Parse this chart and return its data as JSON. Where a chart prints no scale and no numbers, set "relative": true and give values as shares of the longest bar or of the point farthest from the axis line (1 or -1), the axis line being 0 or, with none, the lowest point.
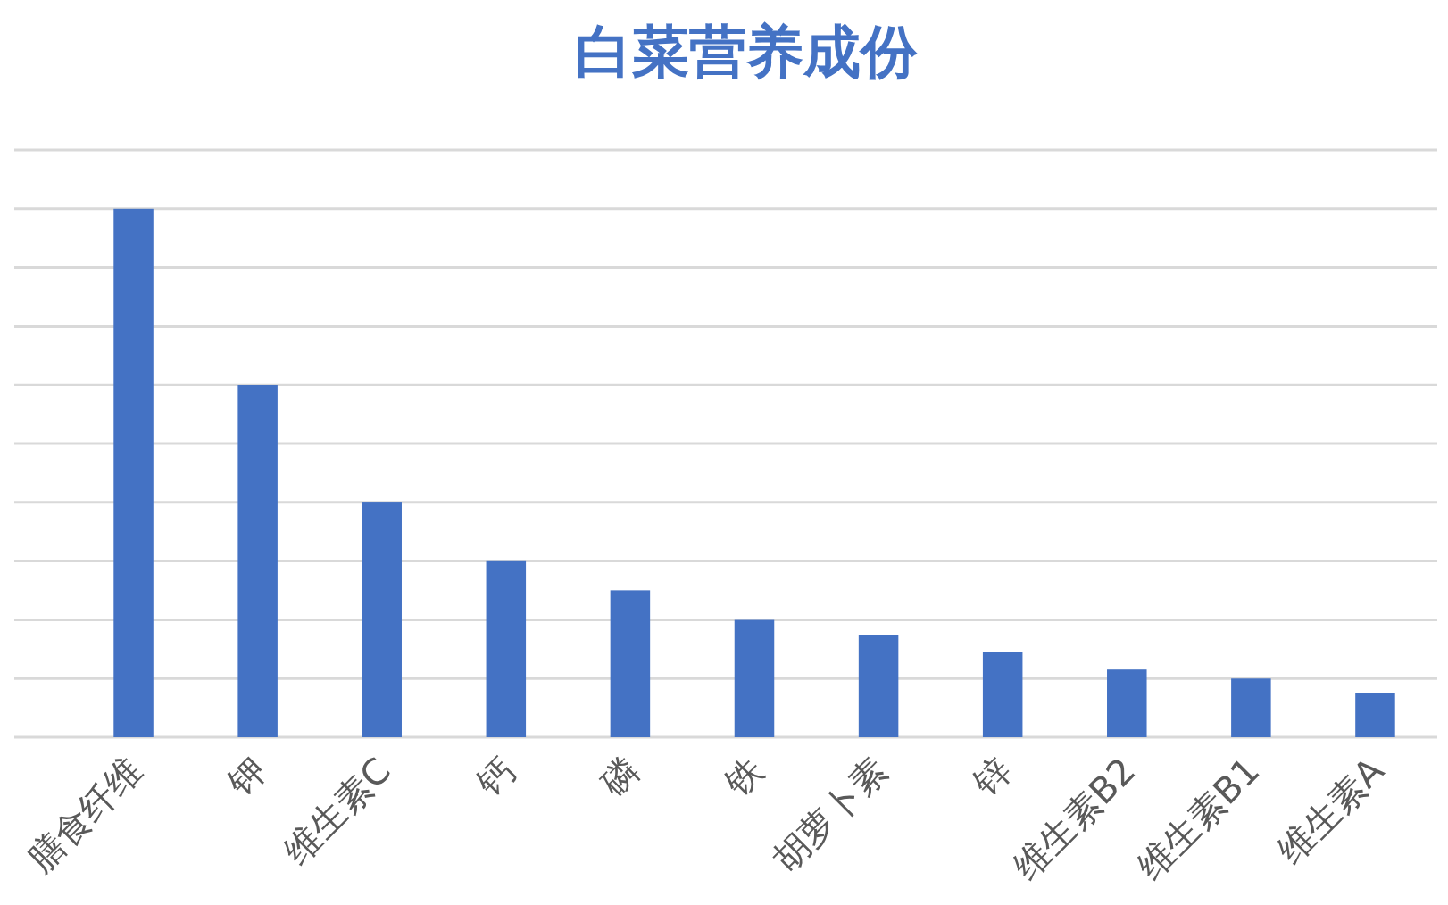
{
  "chart_data": {
    "type": "bar",
    "title": "白菜营养成份",
    "relative": true,
    "grid": true,
    "categories": [
      "膳食纤维",
      "钾",
      "维生素C",
      "钙",
      "磷",
      "铁",
      "胡萝卜素",
      "锌",
      "维生素B2",
      "维生素B1",
      "维生素A"
    ],
    "values": [
      1,
      0.667,
      0.444,
      0.333,
      0.278,
      0.222,
      0.194,
      0.161,
      0.128,
      0.111,
      0.083
    ],
    "color": "#4472c4"
  }
}
